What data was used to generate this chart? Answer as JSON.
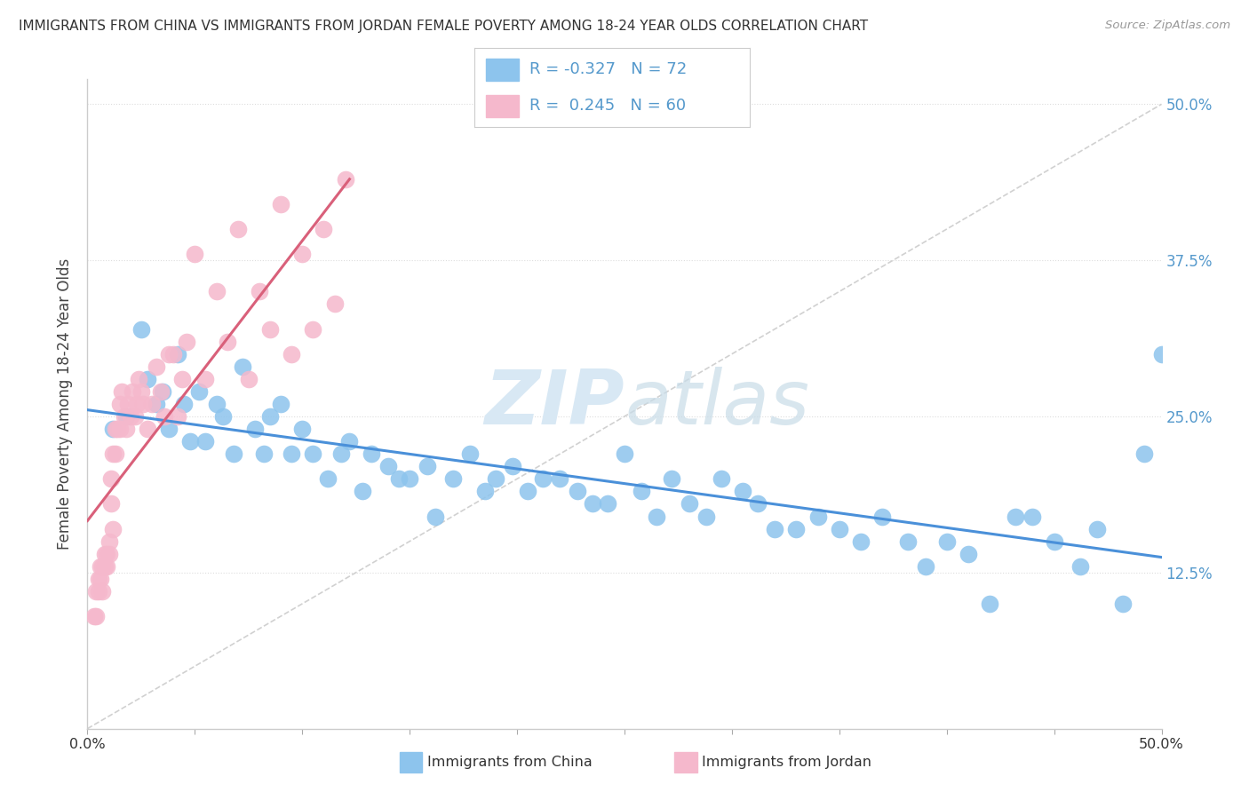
{
  "title": "IMMIGRANTS FROM CHINA VS IMMIGRANTS FROM JORDAN FEMALE POVERTY AMONG 18-24 YEAR OLDS CORRELATION CHART",
  "source": "Source: ZipAtlas.com",
  "ylabel": "Female Poverty Among 18-24 Year Olds",
  "watermark_zip": "ZIP",
  "watermark_atlas": "atlas",
  "legend_china_r": "-0.327",
  "legend_china_n": "72",
  "legend_jordan_r": "0.245",
  "legend_jordan_n": "60",
  "china_color": "#8dc4ed",
  "jordan_color": "#f5b8cc",
  "china_line_color": "#4a90d9",
  "jordan_line_color": "#d9607a",
  "diag_color": "#cccccc",
  "right_label_color": "#5599cc",
  "grid_color": "#dddddd",
  "xlim": [
    0.0,
    0.5
  ],
  "ylim": [
    0.0,
    0.52
  ],
  "xticks": [
    0.0,
    0.5
  ],
  "xtick_labels": [
    "0.0%",
    "50.0%"
  ],
  "ytick_vals": [
    0.125,
    0.25,
    0.375,
    0.5
  ],
  "ytick_labels": [
    "12.5%",
    "25.0%",
    "37.5%",
    "50.0%"
  ],
  "china_x": [
    0.012,
    0.018,
    0.025,
    0.028,
    0.032,
    0.035,
    0.038,
    0.042,
    0.045,
    0.048,
    0.052,
    0.055,
    0.06,
    0.063,
    0.068,
    0.072,
    0.078,
    0.082,
    0.085,
    0.09,
    0.095,
    0.1,
    0.105,
    0.112,
    0.118,
    0.122,
    0.128,
    0.132,
    0.14,
    0.145,
    0.15,
    0.158,
    0.162,
    0.17,
    0.178,
    0.185,
    0.19,
    0.198,
    0.205,
    0.212,
    0.22,
    0.228,
    0.235,
    0.242,
    0.25,
    0.258,
    0.265,
    0.272,
    0.28,
    0.288,
    0.295,
    0.305,
    0.312,
    0.32,
    0.33,
    0.34,
    0.35,
    0.36,
    0.37,
    0.382,
    0.39,
    0.4,
    0.41,
    0.42,
    0.432,
    0.44,
    0.45,
    0.462,
    0.47,
    0.482,
    0.492,
    0.5
  ],
  "china_y": [
    0.24,
    0.25,
    0.32,
    0.28,
    0.26,
    0.27,
    0.24,
    0.3,
    0.26,
    0.23,
    0.27,
    0.23,
    0.26,
    0.25,
    0.22,
    0.29,
    0.24,
    0.22,
    0.25,
    0.26,
    0.22,
    0.24,
    0.22,
    0.2,
    0.22,
    0.23,
    0.19,
    0.22,
    0.21,
    0.2,
    0.2,
    0.21,
    0.17,
    0.2,
    0.22,
    0.19,
    0.2,
    0.21,
    0.19,
    0.2,
    0.2,
    0.19,
    0.18,
    0.18,
    0.22,
    0.19,
    0.17,
    0.2,
    0.18,
    0.17,
    0.2,
    0.19,
    0.18,
    0.16,
    0.16,
    0.17,
    0.16,
    0.15,
    0.17,
    0.15,
    0.13,
    0.15,
    0.14,
    0.1,
    0.17,
    0.17,
    0.15,
    0.13,
    0.16,
    0.1,
    0.22,
    0.3
  ],
  "jordan_x": [
    0.003,
    0.004,
    0.004,
    0.005,
    0.005,
    0.006,
    0.006,
    0.007,
    0.007,
    0.008,
    0.008,
    0.009,
    0.009,
    0.01,
    0.01,
    0.011,
    0.011,
    0.012,
    0.012,
    0.013,
    0.013,
    0.014,
    0.015,
    0.015,
    0.016,
    0.017,
    0.018,
    0.019,
    0.02,
    0.021,
    0.022,
    0.023,
    0.024,
    0.025,
    0.026,
    0.028,
    0.03,
    0.032,
    0.034,
    0.036,
    0.038,
    0.04,
    0.042,
    0.044,
    0.046,
    0.05,
    0.055,
    0.06,
    0.065,
    0.07,
    0.075,
    0.08,
    0.085,
    0.09,
    0.095,
    0.1,
    0.105,
    0.11,
    0.115,
    0.12
  ],
  "jordan_y": [
    0.09,
    0.11,
    0.09,
    0.11,
    0.12,
    0.13,
    0.12,
    0.13,
    0.11,
    0.14,
    0.13,
    0.14,
    0.13,
    0.15,
    0.14,
    0.2,
    0.18,
    0.22,
    0.16,
    0.22,
    0.24,
    0.24,
    0.26,
    0.24,
    0.27,
    0.25,
    0.24,
    0.26,
    0.25,
    0.27,
    0.25,
    0.26,
    0.28,
    0.27,
    0.26,
    0.24,
    0.26,
    0.29,
    0.27,
    0.25,
    0.3,
    0.3,
    0.25,
    0.28,
    0.31,
    0.38,
    0.28,
    0.35,
    0.31,
    0.4,
    0.28,
    0.35,
    0.32,
    0.42,
    0.3,
    0.38,
    0.32,
    0.4,
    0.34,
    0.44
  ]
}
